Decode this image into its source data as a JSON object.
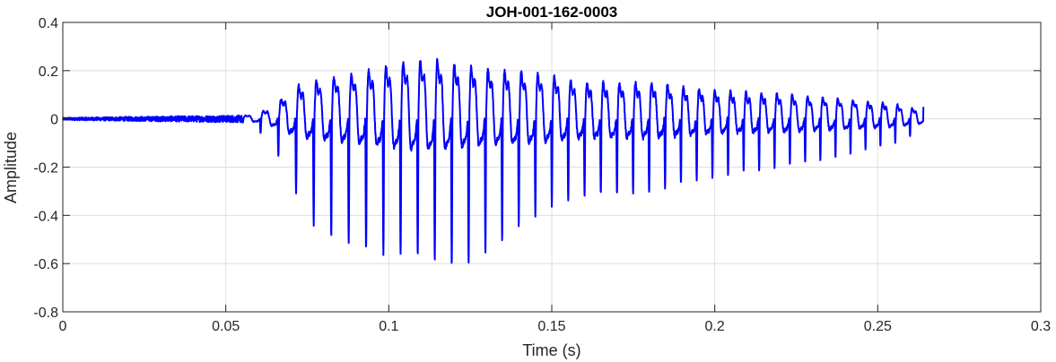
{
  "chart_data": {
    "type": "line",
    "title": "JOH-001-162-0003",
    "xlabel": "Time (s)",
    "ylabel": "Amplitude",
    "xlim": [
      0,
      0.3
    ],
    "ylim": [
      -0.8,
      0.4
    ],
    "xticks": [
      0,
      0.05,
      0.1,
      0.15,
      0.2,
      0.25,
      0.3
    ],
    "xtick_labels": [
      "0",
      "0.05",
      "0.1",
      "0.15",
      "0.2",
      "0.25",
      "0.3"
    ],
    "yticks": [
      0.4,
      0.2,
      0,
      -0.2,
      -0.4,
      -0.6,
      -0.8
    ],
    "ytick_labels": [
      "0.4",
      "0.2",
      "0",
      "-0.2",
      "-0.4",
      "-0.6",
      "-0.8"
    ],
    "grid": true,
    "line_color": "#0000ff",
    "signal": {
      "start": 0,
      "end": 0.264,
      "onset": 0.055,
      "final_value": 0.05,
      "envelope_time": [
        0,
        0.055,
        0.062,
        0.067,
        0.072,
        0.078,
        0.085,
        0.095,
        0.105,
        0.115,
        0.122,
        0.13,
        0.14,
        0.15,
        0.16,
        0.18,
        0.2,
        0.22,
        0.24,
        0.255,
        0.264
      ],
      "envelope_max": [
        0.005,
        0.015,
        0.05,
        0.12,
        0.2,
        0.23,
        0.26,
        0.3,
        0.35,
        0.36,
        0.33,
        0.3,
        0.29,
        0.26,
        0.22,
        0.22,
        0.17,
        0.15,
        0.12,
        0.09,
        0.05
      ],
      "envelope_min": [
        -0.005,
        -0.015,
        -0.07,
        -0.17,
        -0.32,
        -0.46,
        -0.5,
        -0.55,
        -0.57,
        -0.58,
        -0.62,
        -0.55,
        -0.44,
        -0.36,
        -0.32,
        -0.3,
        -0.24,
        -0.2,
        -0.15,
        -0.1,
        -0.05
      ],
      "pitch_period_start": 0.0055,
      "pitch_period_end": 0.0045
    }
  }
}
